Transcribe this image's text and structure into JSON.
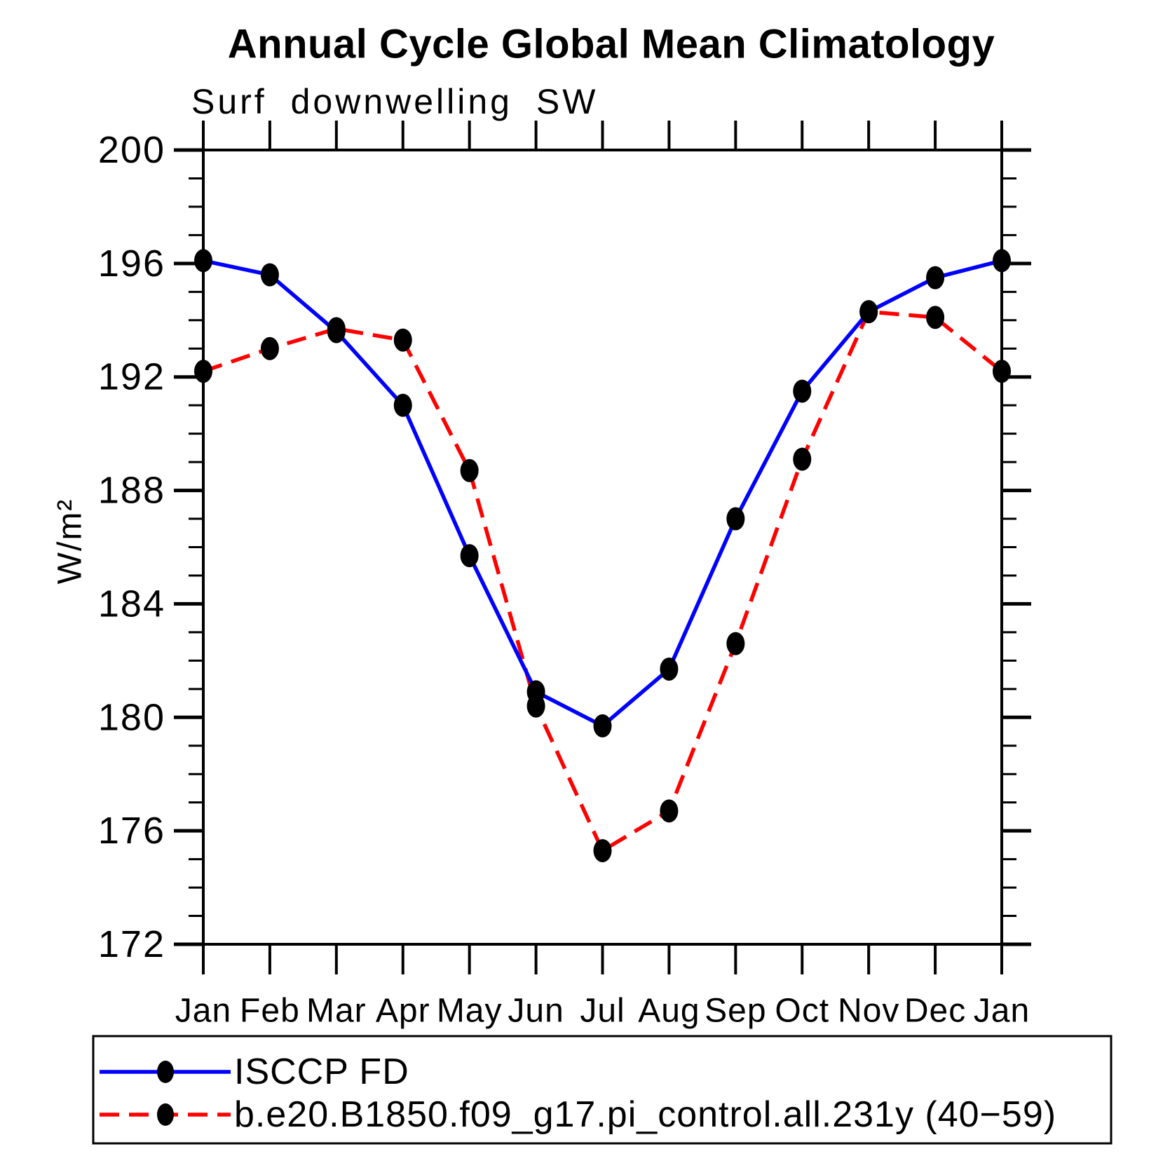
{
  "chart_data": {
    "type": "line",
    "suptitle": "Annual Cycle Global Mean Climatology",
    "title": "Surf downwelling SW",
    "ylabel": "W/m²",
    "xlabel": "",
    "x": [
      "Jan",
      "Feb",
      "Mar",
      "Apr",
      "May",
      "Jun",
      "Jul",
      "Aug",
      "Sep",
      "Oct",
      "Nov",
      "Dec",
      "Jan"
    ],
    "ylim": [
      172,
      200
    ],
    "yticks": [
      172,
      176,
      180,
      184,
      188,
      192,
      196,
      200
    ],
    "ytick_minor_step": 1,
    "grid": false,
    "legend_position": "bottom-box",
    "series": [
      {
        "name": "ISCCP FD",
        "color": "#0000ff",
        "line_style": "solid",
        "marker": "filled-circle",
        "marker_color": "#000000",
        "values": [
          196.1,
          195.6,
          193.6,
          191.0,
          185.7,
          180.9,
          179.7,
          181.7,
          187.0,
          191.5,
          194.3,
          195.5,
          196.1
        ]
      },
      {
        "name": "b.e20.B1850.f09_g17.pi_control.all.231y (40−59)",
        "color": "#ff0000",
        "line_style": "dashed",
        "marker": "filled-circle",
        "marker_color": "#000000",
        "values": [
          192.2,
          193.0,
          193.7,
          193.3,
          188.7,
          180.4,
          175.3,
          176.7,
          182.6,
          189.1,
          194.3,
          194.1,
          192.2
        ]
      }
    ],
    "colors": {
      "axis": "#000000",
      "text": "#000000",
      "background": "#ffffff",
      "series_isccp": "#0000ff",
      "series_model": "#ff0000",
      "marker": "#000000"
    }
  }
}
